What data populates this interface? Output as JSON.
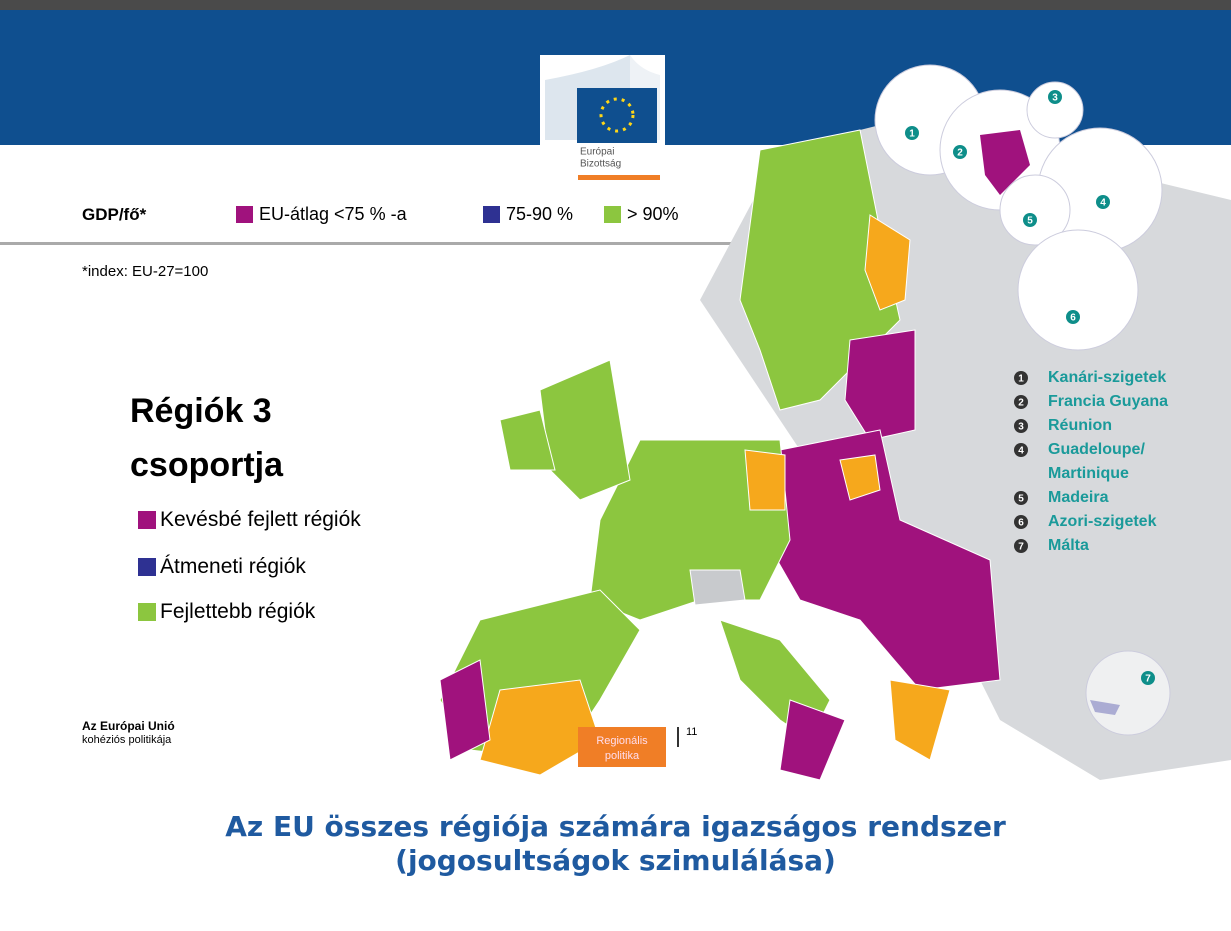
{
  "header": {
    "logo_line1": "Európai",
    "logo_line2": "Bizottság"
  },
  "gdp_legend": {
    "label": "GDP/fő*",
    "items": [
      {
        "text": "EU-átlag <75 % -a",
        "color": "#a0127d"
      },
      {
        "text": "75-90 %",
        "color": "#2e3192"
      },
      {
        "text": "> 90%",
        "color": "#8cc63f"
      }
    ]
  },
  "note": "*index: EU-27=100",
  "groups": {
    "title_line1": "Régiók 3",
    "title_line2": "csoportja",
    "items": [
      {
        "text": "Kevésbé fejlett régiók",
        "color": "#a0127d"
      },
      {
        "text": "Átmeneti régiók",
        "color": "#2e3192"
      },
      {
        "text": "Fejlettebb régiók",
        "color": "#8cc63f"
      }
    ]
  },
  "islands": [
    {
      "number": "1",
      "name": "Kanári-szigetek"
    },
    {
      "number": "2",
      "name": "Francia Guyana"
    },
    {
      "number": "3",
      "name": "Réunion"
    },
    {
      "number": "4",
      "name": "Guadeloupe/"
    },
    {
      "number": "",
      "name": "Martinique"
    },
    {
      "number": "5",
      "name": "Madeira"
    },
    {
      "number": "6",
      "name": "Azori-szigetek"
    },
    {
      "number": "7",
      "name": "Málta"
    }
  ],
  "title_line1": "Az EU összes régiója számára igazságos rendszer",
  "title_line2": "(jogosultságok szimulálása)",
  "footer": {
    "org_line1": "Az Európai Unió",
    "org_line2": "kohéziós politikája",
    "badge_line1": "Regionális",
    "badge_line2": "politika",
    "page": "11"
  }
}
